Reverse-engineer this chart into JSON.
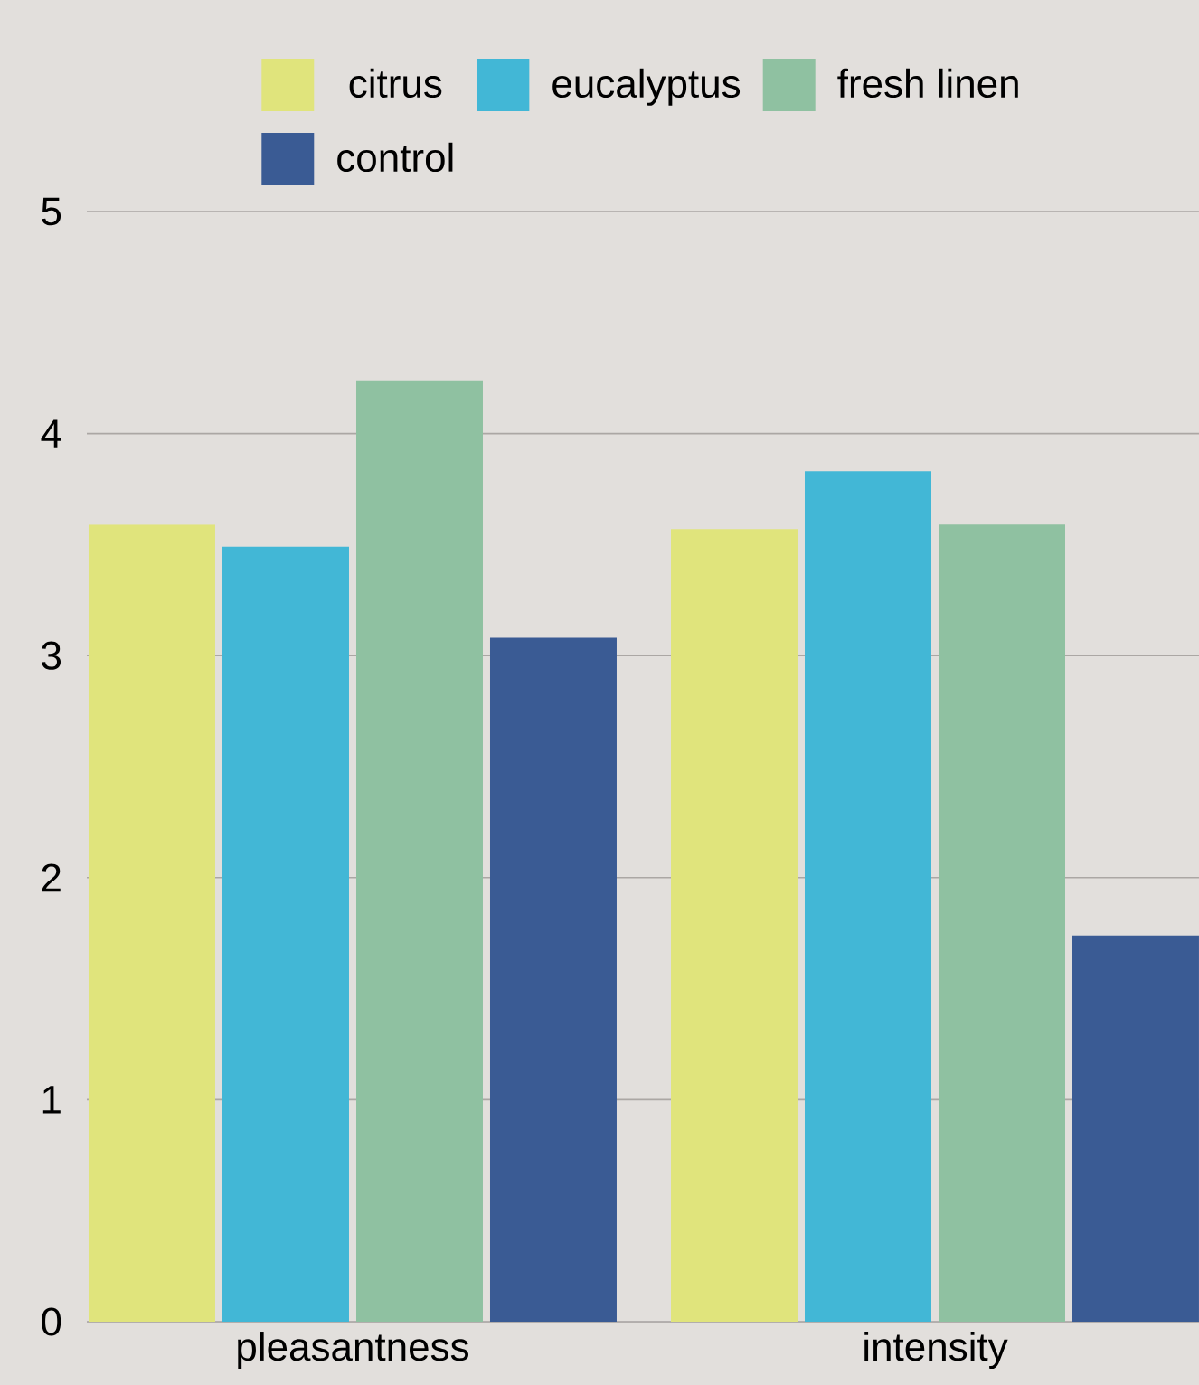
{
  "chart_data": {
    "type": "bar",
    "categories": [
      "pleasantness",
      "intensity"
    ],
    "series": [
      {
        "name": "citrus",
        "color": "#e0e47c",
        "values": [
          3.59,
          3.57
        ]
      },
      {
        "name": "eucalyptus",
        "color": "#42b7d6",
        "values": [
          3.49,
          3.83
        ]
      },
      {
        "name": "fresh linen",
        "color": "#8fc1a1",
        "values": [
          4.24,
          3.59
        ]
      },
      {
        "name": "control",
        "color": "#3a5b94",
        "values": [
          3.08,
          1.74
        ]
      }
    ],
    "ylim": [
      0,
      5
    ],
    "yticks": [
      0,
      1,
      2,
      3,
      4,
      5
    ],
    "grid": "y",
    "legend": "top"
  }
}
